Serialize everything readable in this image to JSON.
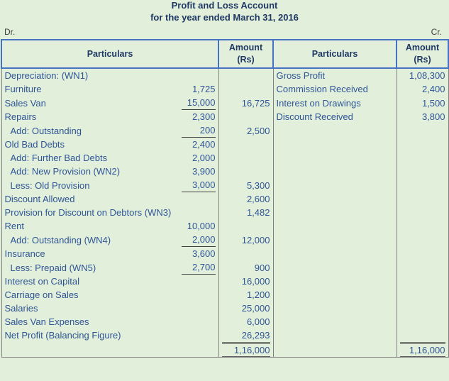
{
  "header": {
    "title": "Profit and Loss Account",
    "subtitle": "for the year ended March 31, 2016",
    "dr": "Dr.",
    "cr": "Cr."
  },
  "table": {
    "columns": {
      "debit_particulars": "Particulars",
      "debit_amount": [
        "Amount",
        "(Rs)"
      ],
      "credit_particulars": "Particulars",
      "credit_amount": [
        "Amount",
        "(Rs)"
      ]
    },
    "debit_rows": [
      [
        "Depreciation: (WN1)",
        null,
        null
      ],
      [
        "Furniture",
        "1,725",
        null
      ],
      [
        "Sales Van",
        "15,000",
        "16,725"
      ],
      [
        "Repairs",
        "2,300",
        null
      ],
      [
        "Add: Outstanding",
        "200",
        "2,500"
      ],
      [
        "Old Bad Debts",
        "2,400",
        null
      ],
      [
        "Add: Further Bad Debts",
        "2,000",
        null
      ],
      [
        "Add: New Provision (WN2)",
        "3,900",
        null
      ],
      [
        "Less: Old Provision",
        "3,000",
        "5,300"
      ],
      [
        "Discount Allowed",
        null,
        "2,600"
      ],
      [
        "Provision for Discount on Debtors (WN3)",
        null,
        "1,482"
      ],
      [
        "Rent",
        "10,000",
        null
      ],
      [
        "Add: Outstanding (WN4)",
        "2,000",
        "12,000"
      ],
      [
        "Insurance",
        "3,600",
        null
      ],
      [
        "Less: Prepaid (WN5)",
        "2,700",
        "900"
      ],
      [
        "Interest on Capital",
        null,
        "16,000"
      ],
      [
        "Carriage on Sales",
        null,
        "1,200"
      ],
      [
        "Salaries",
        null,
        "25,000"
      ],
      [
        "Sales Van Expenses",
        null,
        "6,000"
      ],
      [
        "Net Profit (Balancing Figure)",
        null,
        "26,293"
      ]
    ],
    "credit_rows": [
      [
        "Gross Profit",
        "1,08,300"
      ],
      [
        "Commission Received",
        "2,400"
      ],
      [
        "Interest on Drawings",
        "1,500"
      ],
      [
        "Discount Received",
        "3,800"
      ]
    ],
    "debit_total": "1,16,000",
    "credit_total": "1,16,000"
  }
}
